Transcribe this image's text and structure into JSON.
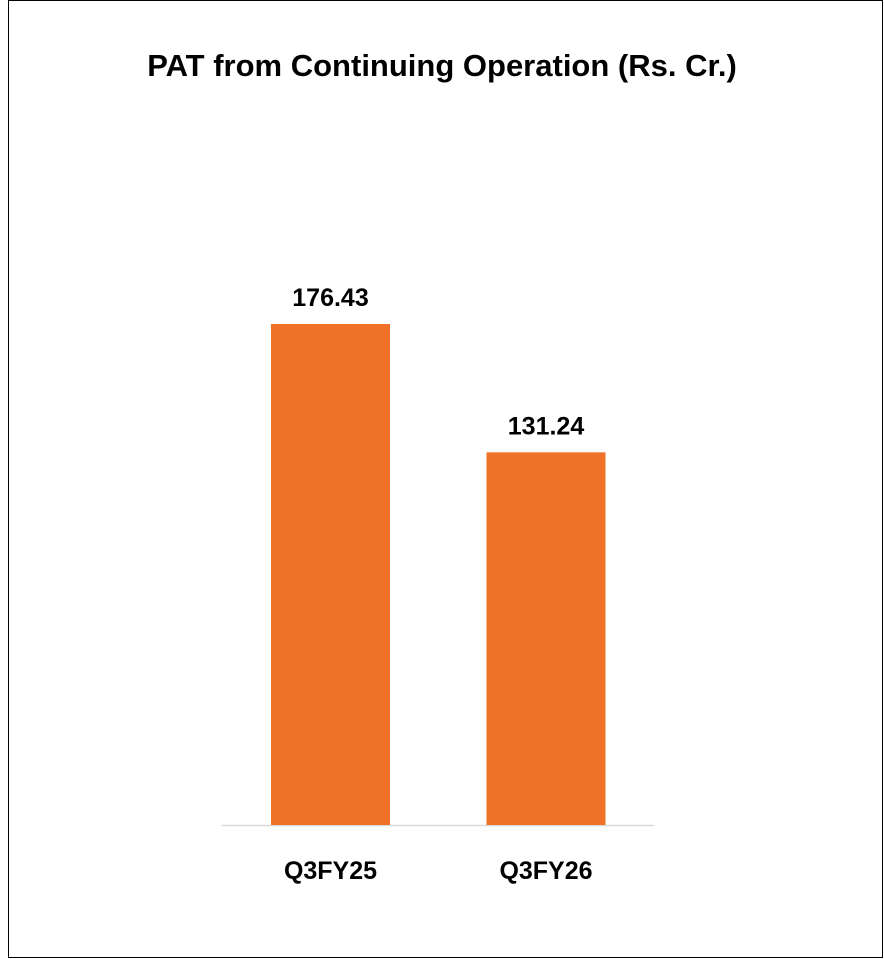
{
  "chart_data": {
    "type": "bar",
    "title": "PAT from Continuing Operation (Rs. Cr.)",
    "categories": [
      "Q3FY25",
      "Q3FY26"
    ],
    "values": [
      176.43,
      131.24
    ],
    "color": "#f07229"
  }
}
